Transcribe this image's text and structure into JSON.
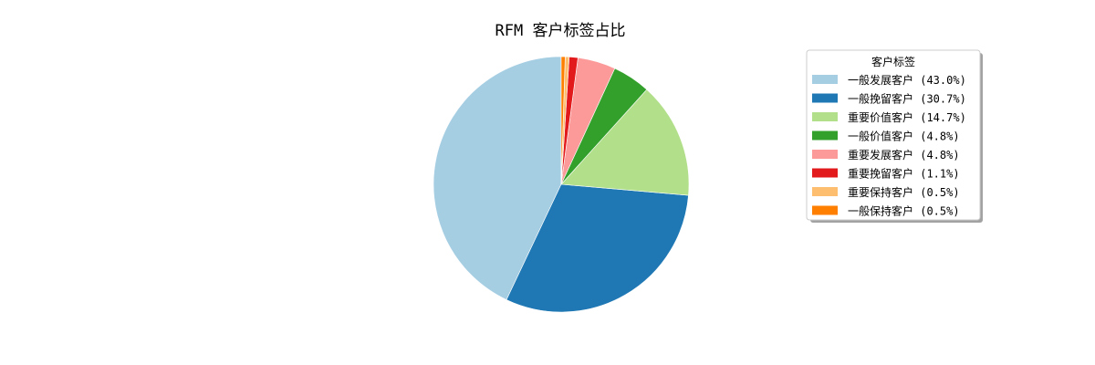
{
  "chart_data": {
    "type": "pie",
    "title": "RFM 客户标签占比",
    "legend_title": "客户标签",
    "legend_position": "upper-right",
    "start_angle_deg": 90,
    "direction": "counterclockwise",
    "slices": [
      {
        "label": "一般发展客户 (43.0%)",
        "value": 43.0,
        "color": "#a6cee3"
      },
      {
        "label": "一般挽留客户 (30.7%)",
        "value": 30.7,
        "color": "#1f78b4"
      },
      {
        "label": "重要价值客户 (14.7%)",
        "value": 14.7,
        "color": "#b2df8a"
      },
      {
        "label": "一般价值客户 (4.8%)",
        "value": 4.8,
        "color": "#33a02c"
      },
      {
        "label": "重要发展客户 (4.8%)",
        "value": 4.8,
        "color": "#fb9a99"
      },
      {
        "label": "重要挽留客户 (1.1%)",
        "value": 1.1,
        "color": "#e31a1c"
      },
      {
        "label": "重要保持客户 (0.5%)",
        "value": 0.5,
        "color": "#fdbf6f"
      },
      {
        "label": "一般保持客户 (0.5%)",
        "value": 0.5,
        "color": "#ff7f00"
      }
    ]
  }
}
